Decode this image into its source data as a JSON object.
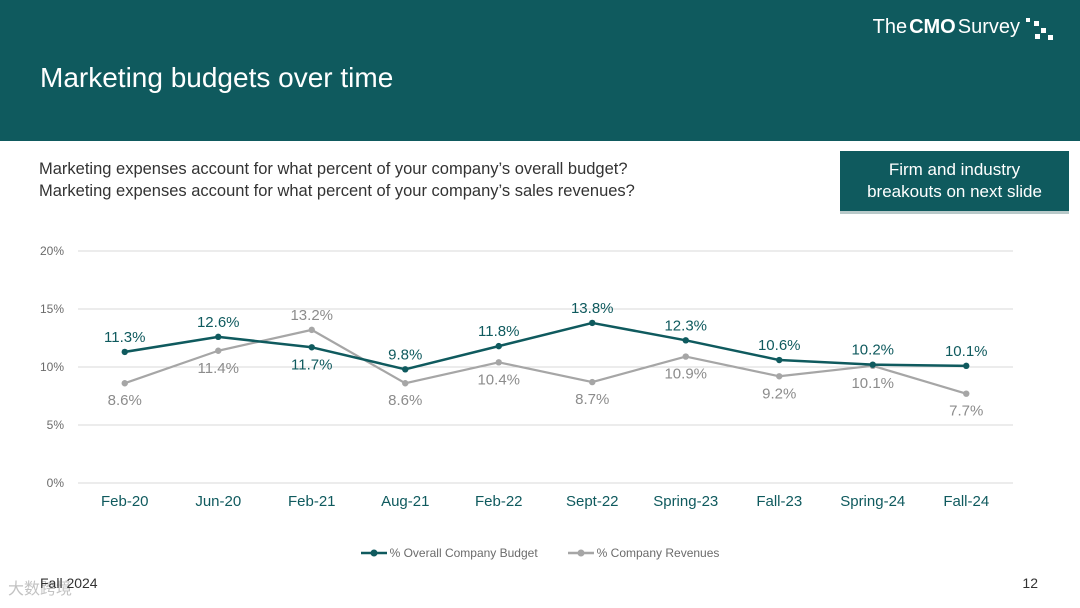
{
  "slide": {
    "title": "Marketing budgets over time",
    "logo": {
      "prefix": "The",
      "bold": "CMO",
      "suffix": "Survey"
    },
    "questions": [
      "Marketing expenses account for what percent of your company’s overall budget?",
      "Marketing expenses account for what percent of your company’s sales revenues?"
    ],
    "callout_lines": [
      "Firm and industry",
      "breakouts on next slide"
    ],
    "footer_left": "Fall 2024",
    "page_number": "12",
    "watermark": "大数跨境",
    "colors": {
      "brand": "#0f5a5e",
      "budget": "#0f5a5e",
      "revenues": "#a6a6a6",
      "grid": "#d9d9d9"
    }
  },
  "chart_data": {
    "type": "line",
    "categories": [
      "Feb-20",
      "Jun-20",
      "Feb-21",
      "Aug-21",
      "Feb-22",
      "Sept-22",
      "Spring-23",
      "Fall-23",
      "Spring-24",
      "Fall-24"
    ],
    "series": [
      {
        "name": "% Overall Company Budget",
        "values": [
          11.3,
          12.6,
          11.7,
          9.8,
          11.8,
          13.8,
          12.3,
          10.6,
          10.2,
          10.1
        ],
        "labels": [
          "11.3%",
          "12.6%",
          "11.7%",
          "9.8%",
          "11.8%",
          "13.8%",
          "12.3%",
          "10.6%",
          "10.2%",
          "10.1%"
        ]
      },
      {
        "name": "% Company Revenues",
        "values": [
          8.6,
          11.4,
          13.2,
          8.6,
          10.4,
          8.7,
          10.9,
          9.2,
          10.1,
          7.7
        ],
        "labels": [
          "8.6%",
          "11.4%",
          "13.2%",
          "8.6%",
          "10.4%",
          "8.7%",
          "10.9%",
          "9.2%",
          "10.1%",
          "7.7%"
        ]
      }
    ],
    "y_ticks": [
      0,
      5,
      10,
      15,
      20
    ],
    "y_tick_labels": [
      "0%",
      "5%",
      "10%",
      "15%",
      "20%"
    ],
    "ylim": [
      0,
      20
    ],
    "grid": true,
    "legend_position": "bottom"
  }
}
